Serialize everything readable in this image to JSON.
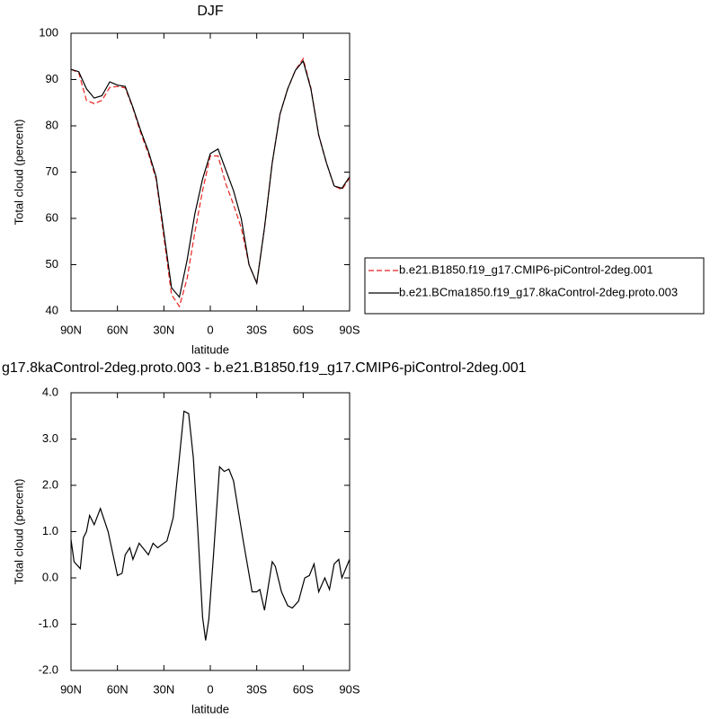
{
  "chart_data": [
    {
      "type": "line",
      "title": "DJF",
      "xlabel": "latitude",
      "ylabel": "Total cloud (percent)",
      "x": [
        90,
        85,
        80,
        75,
        70,
        65,
        60,
        55,
        50,
        45,
        40,
        35,
        30,
        25,
        20,
        15,
        10,
        5,
        0,
        -5,
        -10,
        -15,
        -20,
        -25,
        -30,
        -35,
        -40,
        -45,
        -50,
        -55,
        -60,
        -65,
        -70,
        -75,
        -80,
        -85,
        -90
      ],
      "series": [
        {
          "name": "b.e21.B1850.f19_g17.CMIP6-piControl-2deg.001",
          "color": "#e8221e",
          "linestyle": "dashed",
          "values": [
            92.2,
            91.5,
            85.5,
            84.8,
            85.5,
            88.3,
            88.5,
            88.2,
            83.8,
            78.5,
            74,
            68.5,
            56,
            43.5,
            41,
            47,
            57,
            66,
            73.5,
            73.5,
            67.5,
            63,
            58,
            50,
            46,
            58,
            72,
            82.5,
            88,
            92,
            94.5,
            88.2,
            78,
            72,
            67,
            66.2,
            68.8
          ]
        },
        {
          "name": "b.e21.BCma1850.f19_g17.8kaControl-2deg.proto.003",
          "color": "#000000",
          "linestyle": "solid",
          "values": [
            92.2,
            91.7,
            88,
            86,
            86.5,
            89.5,
            88.8,
            88.5,
            84,
            79,
            74.5,
            69,
            57,
            45,
            43,
            51,
            61,
            68.5,
            74,
            75,
            70.5,
            66,
            60,
            50,
            46,
            58,
            72,
            82.5,
            88,
            92,
            94,
            88,
            78,
            72,
            67,
            66.5,
            69
          ]
        }
      ],
      "xlim": [
        90,
        -90
      ],
      "xticks": [
        {
          "value": 90,
          "label": "90N"
        },
        {
          "value": 60,
          "label": "60N"
        },
        {
          "value": 30,
          "label": "30N"
        },
        0,
        {
          "value": -30,
          "label": "30S"
        },
        {
          "value": -60,
          "label": "60S"
        },
        {
          "value": -90,
          "label": "90S"
        }
      ],
      "ylim": [
        40,
        100
      ],
      "yticks": [
        40,
        50,
        60,
        70,
        80,
        90,
        100
      ],
      "legend": "outside-right"
    },
    {
      "type": "line",
      "title": "g17.8kaControl-2deg.proto.003 - b.e21.B1850.f19_g17.CMIP6-piControl-2deg.001",
      "xlabel": "latitude",
      "ylabel": "Total cloud (percent)",
      "x": [
        90,
        88,
        84,
        82,
        80,
        78,
        75,
        71,
        66,
        60,
        57,
        55,
        52,
        50,
        46,
        40,
        37,
        34,
        28,
        24,
        20,
        17,
        14,
        11,
        8,
        5,
        3,
        1,
        -2,
        -6,
        -9,
        -12,
        -15,
        -21,
        -27,
        -30,
        -32,
        -35,
        -40,
        -42,
        -46,
        -50,
        -53,
        -57,
        -61,
        -64,
        -67,
        -70,
        -74,
        -77,
        -80,
        -83,
        -85,
        -90
      ],
      "color": "#000000",
      "values": [
        0.83,
        0.35,
        0.2,
        0.87,
        1.0,
        1.35,
        1.15,
        1.5,
        1.0,
        0.05,
        0.1,
        0.5,
        0.65,
        0.4,
        0.75,
        0.5,
        0.75,
        0.65,
        0.8,
        1.3,
        2.6,
        3.6,
        3.55,
        2.6,
        1.0,
        -0.85,
        -1.35,
        -0.9,
        0.45,
        2.4,
        2.3,
        2.35,
        2.1,
        0.85,
        -0.3,
        -0.3,
        -0.25,
        -0.7,
        0.35,
        0.25,
        -0.3,
        -0.6,
        -0.65,
        -0.5,
        0.0,
        0.05,
        0.3,
        -0.3,
        0.0,
        -0.25,
        0.3,
        0.4,
        0.0,
        0.4
      ],
      "xlim": [
        90,
        -90
      ],
      "xticks": [
        {
          "value": 90,
          "label": "90N"
        },
        {
          "value": 60,
          "label": "60N"
        },
        {
          "value": 30,
          "label": "30N"
        },
        0,
        {
          "value": -30,
          "label": "30S"
        },
        {
          "value": -60,
          "label": "60S"
        },
        {
          "value": -90,
          "label": "90S"
        }
      ],
      "ylim": [
        -2,
        4
      ],
      "yticks": [
        {
          "value": -2,
          "label": "-2.0"
        },
        {
          "value": -1,
          "label": "-1.0"
        },
        {
          "value": 0,
          "label": "0.0"
        },
        {
          "value": 1,
          "label": "1.0"
        },
        {
          "value": 2,
          "label": "2.0"
        },
        {
          "value": 3,
          "label": "3.0"
        },
        {
          "value": 4,
          "label": "4.0"
        }
      ]
    }
  ]
}
